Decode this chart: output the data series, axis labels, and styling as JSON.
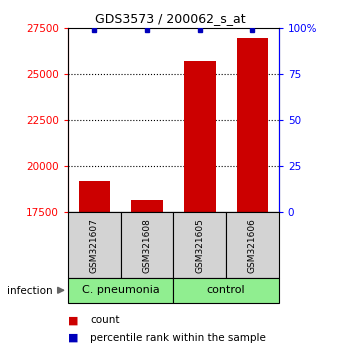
{
  "title": "GDS3573 / 200062_s_at",
  "samples": [
    "GSM321607",
    "GSM321608",
    "GSM321605",
    "GSM321606"
  ],
  "counts": [
    19200,
    18200,
    25700,
    27000
  ],
  "percentile_ranks": [
    99,
    99,
    99,
    99
  ],
  "ylim_left": [
    17500,
    27500
  ],
  "ylim_right": [
    0,
    100
  ],
  "yticks_left": [
    17500,
    20000,
    22500,
    25000,
    27500
  ],
  "yticks_right": [
    0,
    25,
    50,
    75,
    100
  ],
  "grid_lines": [
    20000,
    22500,
    25000
  ],
  "bar_color": "#cc0000",
  "marker_color": "#0000bb",
  "sample_box_color": "#d3d3d3",
  "group1_label": "C. pneumonia",
  "group2_label": "control",
  "group1_color": "#90EE90",
  "group2_color": "#90EE90",
  "infection_label": "infection",
  "legend_count": "count",
  "legend_percentile": "percentile rank within the sample",
  "title_fontsize": 9,
  "axis_fontsize": 7.5,
  "sample_fontsize": 6.5,
  "group_fontsize": 8,
  "legend_fontsize": 7.5
}
